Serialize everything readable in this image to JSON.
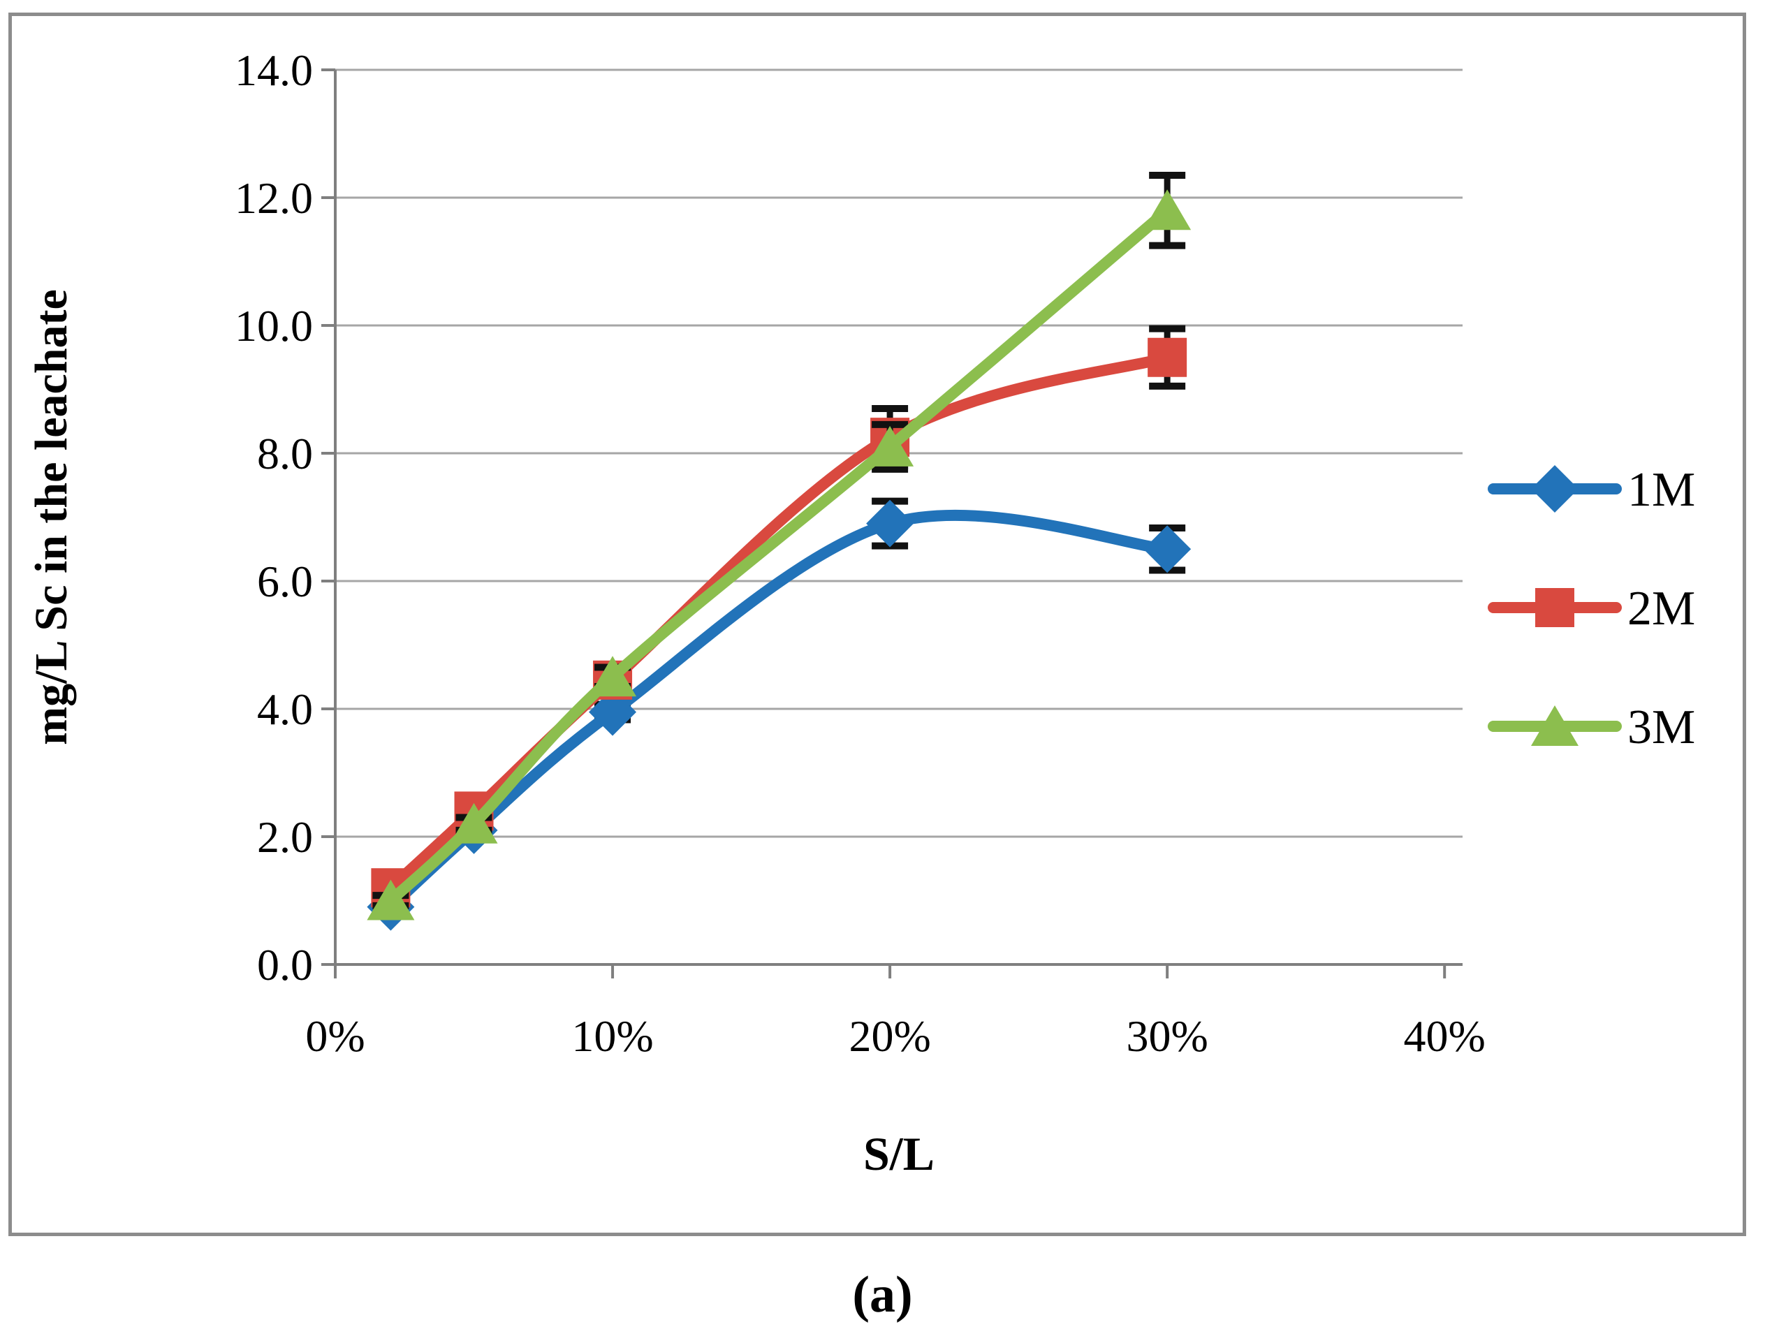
{
  "figure": {
    "caption": "(a)",
    "border_color": "#8c8c8c",
    "background": "#ffffff"
  },
  "chart_data": {
    "type": "line",
    "title": "",
    "xlabel": "S/L",
    "ylabel": "mg/L Sc in the leachate",
    "grid": true,
    "legend_position": "right",
    "xlim": [
      0,
      40.65
    ],
    "ylim": [
      0,
      14
    ],
    "x_ticks": [
      0,
      10,
      20,
      30,
      40
    ],
    "x_tick_labels": [
      "0%",
      "10%",
      "20%",
      "30%",
      "40%"
    ],
    "y_ticks": [
      0,
      2,
      4,
      6,
      8,
      10,
      12,
      14
    ],
    "y_tick_labels": [
      "0.0",
      "2.0",
      "4.0",
      "6.0",
      "8.0",
      "10.0",
      "12.0",
      "14.0"
    ],
    "x": [
      2,
      5,
      10,
      20,
      30
    ],
    "series": [
      {
        "name": "1M",
        "color": "#2273b9",
        "marker": "diamond",
        "values": [
          0.9,
          2.1,
          3.95,
          6.9,
          6.5
        ],
        "errors": [
          0.06,
          0.1,
          0.12,
          0.35,
          0.33
        ]
      },
      {
        "name": "2M",
        "color": "#d9493f",
        "marker": "square",
        "values": [
          1.2,
          2.4,
          4.45,
          8.25,
          9.5
        ],
        "errors": [
          0.1,
          0.12,
          0.15,
          0.45,
          0.45
        ]
      },
      {
        "name": "3M",
        "color": "#8cbe4e",
        "marker": "triangle",
        "values": [
          1.0,
          2.2,
          4.5,
          8.1,
          11.8
        ],
        "errors": [
          0.08,
          0.1,
          0.15,
          0.35,
          0.55
        ]
      }
    ],
    "style": {
      "gridline_color": "#a6a6a6",
      "axis_color": "#7f7f7f",
      "error_bar_color": "#111111",
      "text_color": "#000000"
    }
  }
}
